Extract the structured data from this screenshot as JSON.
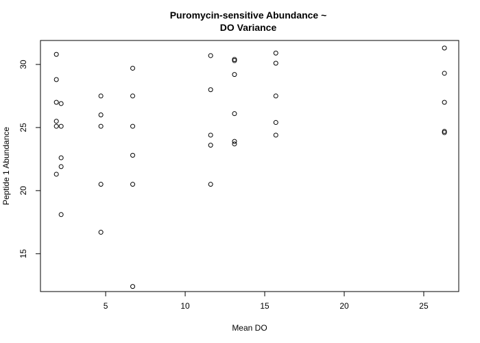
{
  "chart_data": {
    "type": "scatter",
    "title_lines": [
      "Puromycin-sensitive Abundance ~",
      "DO Variance"
    ],
    "xlabel": "Mean DO",
    "ylabel": "Peptide 1 Abundance",
    "xlim": [
      0.9,
      27.2
    ],
    "ylim": [
      12.0,
      31.9
    ],
    "xticks": [
      5,
      10,
      15,
      20,
      25
    ],
    "yticks": [
      15,
      20,
      25,
      30
    ],
    "grid": false,
    "point_style": "open-circle",
    "colors": {
      "points": "#000000",
      "axes": "#000000",
      "background": "#ffffff"
    },
    "points": [
      {
        "x": 1.9,
        "y": 30.8
      },
      {
        "x": 1.9,
        "y": 28.8
      },
      {
        "x": 1.9,
        "y": 27.0
      },
      {
        "x": 2.2,
        "y": 26.9
      },
      {
        "x": 1.9,
        "y": 25.5
      },
      {
        "x": 1.9,
        "y": 25.1
      },
      {
        "x": 2.2,
        "y": 25.1
      },
      {
        "x": 2.2,
        "y": 22.6
      },
      {
        "x": 2.2,
        "y": 21.9
      },
      {
        "x": 1.9,
        "y": 21.3
      },
      {
        "x": 2.2,
        "y": 18.1
      },
      {
        "x": 4.7,
        "y": 27.5
      },
      {
        "x": 4.7,
        "y": 26.0
      },
      {
        "x": 4.7,
        "y": 25.1
      },
      {
        "x": 4.7,
        "y": 20.5
      },
      {
        "x": 4.7,
        "y": 16.7
      },
      {
        "x": 6.7,
        "y": 29.7
      },
      {
        "x": 6.7,
        "y": 27.5
      },
      {
        "x": 6.7,
        "y": 25.1
      },
      {
        "x": 6.7,
        "y": 22.8
      },
      {
        "x": 6.7,
        "y": 20.5
      },
      {
        "x": 6.7,
        "y": 12.4
      },
      {
        "x": 11.6,
        "y": 30.7
      },
      {
        "x": 11.6,
        "y": 28.0
      },
      {
        "x": 11.6,
        "y": 24.4
      },
      {
        "x": 11.6,
        "y": 23.6
      },
      {
        "x": 11.6,
        "y": 20.5
      },
      {
        "x": 13.1,
        "y": 30.4
      },
      {
        "x": 13.1,
        "y": 30.3
      },
      {
        "x": 13.1,
        "y": 29.2
      },
      {
        "x": 13.1,
        "y": 26.1
      },
      {
        "x": 13.1,
        "y": 23.9
      },
      {
        "x": 13.1,
        "y": 23.7
      },
      {
        "x": 15.7,
        "y": 30.9
      },
      {
        "x": 15.7,
        "y": 30.1
      },
      {
        "x": 15.7,
        "y": 27.5
      },
      {
        "x": 15.7,
        "y": 25.4
      },
      {
        "x": 15.7,
        "y": 24.4
      },
      {
        "x": 26.3,
        "y": 31.3
      },
      {
        "x": 26.3,
        "y": 29.3
      },
      {
        "x": 26.3,
        "y": 27.0
      },
      {
        "x": 26.3,
        "y": 24.7
      },
      {
        "x": 26.3,
        "y": 24.6
      }
    ]
  }
}
